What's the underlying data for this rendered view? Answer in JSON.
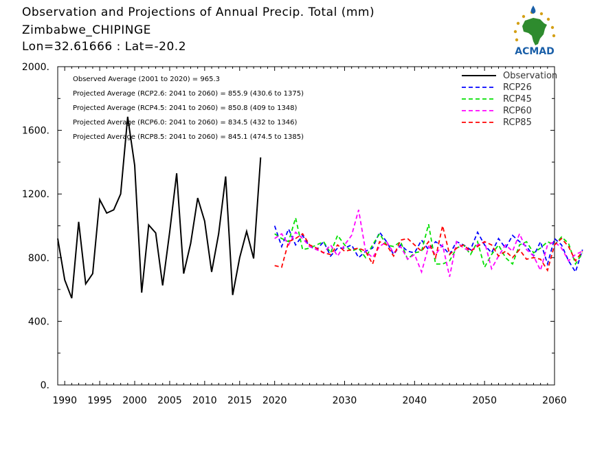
{
  "header": {
    "title": "Observation and Projections of Annual Precip. Total (mm)",
    "location": "Zimbabwe_CHIPINGE",
    "coords": "Lon=32.61666 : Lat=-20.2"
  },
  "logo": {
    "text": "ACMAD",
    "icon": "africa-map-icon",
    "color": "#1a5fa8",
    "accent": "#d4a017"
  },
  "chart_data": {
    "type": "line",
    "xlim": [
      1989,
      2060
    ],
    "ylim": [
      0,
      2000
    ],
    "xticks": [
      1990,
      1995,
      2000,
      2005,
      2010,
      2015,
      2020,
      2030,
      2040,
      2050,
      2060
    ],
    "yticks": [
      0,
      400,
      800,
      1200,
      1600,
      2000
    ],
    "ytick_labels": [
      "0.",
      "400.",
      "800.",
      "1200.",
      "1600.",
      "2000."
    ],
    "grid": false,
    "legend_position": "top-right",
    "annotations": [
      "Observed Average (2001 to 2020) = 965.3",
      "Projected Average (RCP2.6: 2041 to 2060) = 855.9 (430.6 to 1375)",
      "Projected Average (RCP4.5: 2041 to 2060) = 850.8 (409 to 1348)",
      "Projected Average (RCP6.0: 2041 to 2060) = 834.5 (432 to 1346)",
      "Projected Average (RCP8.5: 2041 to 2060) = 845.1 (474.5 to 1385)"
    ],
    "series": [
      {
        "name": "Observation",
        "color": "#000000",
        "dash": false,
        "x_start": 1989,
        "values": [
          920,
          660,
          545,
          1025,
          635,
          700,
          1165,
          1080,
          1100,
          1200,
          1685,
          1380,
          580,
          1005,
          955,
          625,
          960,
          1330,
          700,
          890,
          1175,
          1030,
          710,
          950,
          1310,
          565,
          800,
          965,
          795,
          1430
        ]
      },
      {
        "name": "RCP26",
        "color": "#0000ff",
        "dash": true,
        "x_start": 2020,
        "values": [
          1000,
          870,
          980,
          880,
          940,
          870,
          850,
          900,
          810,
          860,
          860,
          880,
          800,
          840,
          860,
          960,
          900,
          820,
          880,
          840,
          830,
          910,
          850,
          900,
          870,
          820,
          900,
          880,
          850,
          960,
          880,
          830,
          920,
          860,
          940,
          900,
          870,
          810,
          900,
          760,
          920,
          880,
          780,
          710,
          850
        ]
      },
      {
        "name": "RCP45",
        "color": "#00e000",
        "dash": true,
        "x_start": 2020,
        "values": [
          950,
          920,
          900,
          1050,
          850,
          860,
          880,
          900,
          830,
          940,
          880,
          840,
          860,
          800,
          880,
          950,
          880,
          870,
          900,
          790,
          830,
          840,
          1010,
          760,
          760,
          780,
          860,
          880,
          820,
          900,
          740,
          820,
          880,
          800,
          760,
          880,
          900,
          830,
          860,
          900,
          880,
          930,
          890,
          760,
          830
        ]
      },
      {
        "name": "RCP60",
        "color": "#ff00ff",
        "dash": true,
        "x_start": 2020,
        "values": [
          920,
          950,
          880,
          960,
          920,
          870,
          850,
          830,
          880,
          810,
          880,
          940,
          1100,
          840,
          800,
          870,
          900,
          830,
          870,
          790,
          820,
          710,
          870,
          820,
          880,
          680,
          900,
          860,
          840,
          880,
          900,
          730,
          810,
          880,
          840,
          950,
          850,
          810,
          720,
          880,
          900,
          860,
          780,
          820,
          840
        ]
      },
      {
        "name": "RCP85",
        "color": "#ff0000",
        "dash": true,
        "x_start": 2020,
        "values": [
          750,
          740,
          900,
          920,
          950,
          880,
          860,
          830,
          820,
          880,
          840,
          850,
          860,
          840,
          760,
          900,
          880,
          810,
          910,
          920,
          880,
          840,
          900,
          800,
          1000,
          820,
          860,
          880,
          840,
          870,
          900,
          880,
          810,
          840,
          800,
          850,
          790,
          800,
          790,
          720,
          880,
          920,
          870,
          780,
          840
        ]
      }
    ]
  }
}
